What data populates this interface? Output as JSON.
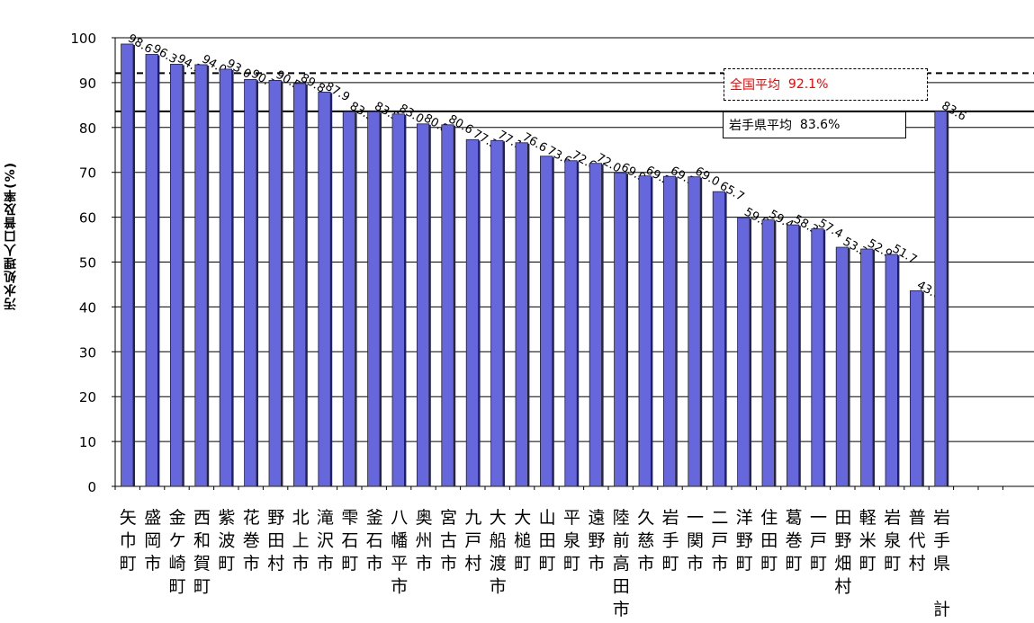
{
  "chart_data": {
    "type": "bar",
    "ylabel": "汚水処理人口普及率(%)",
    "ylim": [
      0,
      100
    ],
    "yticks": [
      0,
      10,
      20,
      30,
      40,
      50,
      60,
      70,
      80,
      90,
      100
    ],
    "grid": true,
    "bar_color": "#6666dd",
    "categories": [
      "矢巾町",
      "盛岡市",
      "金ケ崎町",
      "西和賀町",
      "紫波町",
      "花巻市",
      "野田村",
      "北上市",
      "滝沢市",
      "雫石町",
      "釜石市",
      "八幡平市",
      "奥州市",
      "宮古市",
      "九戸村",
      "大船渡市",
      "大槌町",
      "山田町",
      "平泉町",
      "遠野市",
      "陸前高田市",
      "久慈市",
      "岩手町",
      "一関市",
      "二戸市",
      "洋野町",
      "住田町",
      "葛巻町",
      "一戸町",
      "田野畑村",
      "軽米町",
      "岩泉町",
      "普代村",
      "岩手県計"
    ],
    "values": [
      98.6,
      96.3,
      94.1,
      94.0,
      93.0,
      90.7,
      90.5,
      89.8,
      87.9,
      83.5,
      83.5,
      83.0,
      80.8,
      80.6,
      77.3,
      77.1,
      76.6,
      73.6,
      72.6,
      72.0,
      69.9,
      69.2,
      69.1,
      69.0,
      65.7,
      59.9,
      59.4,
      58.3,
      57.4,
      53.3,
      52.9,
      51.7,
      43.6,
      83.6
    ],
    "value_labels": [
      "98.6",
      "96.3",
      "94.1",
      "94.0",
      "93.0",
      "90.7",
      "90.5",
      "89.8",
      "87.9",
      "83.5",
      "83.5",
      "83.0",
      "80.8",
      "80.6",
      "77.3",
      "77.1",
      "76.6",
      "73.6",
      "72.6",
      "72.0",
      "69.9",
      "69.2",
      "69.1",
      "69.0",
      "65.7",
      "59.9",
      "59.4",
      "58.3",
      "57.4",
      "53.3",
      "52.9",
      "51.7",
      "43.6",
      "83.6"
    ],
    "reference_lines": [
      {
        "label": "全国平均",
        "value": 92.1,
        "value_text": "92.1%",
        "style": "dashed",
        "color": "#ff0000"
      },
      {
        "label": "岩手県平均",
        "value": 83.6,
        "value_text": "83.6%",
        "style": "solid",
        "color": "#000000"
      }
    ]
  }
}
